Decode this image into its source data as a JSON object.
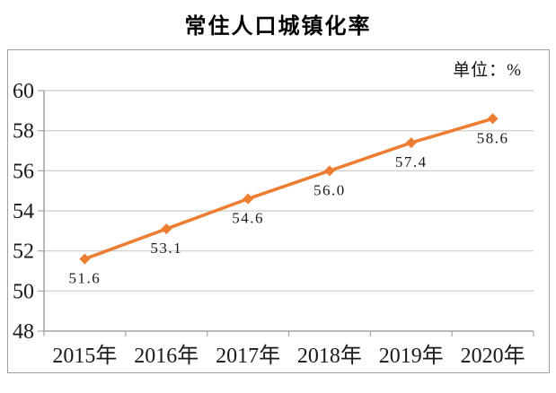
{
  "title": "常住人口城镇化率",
  "unit_label": "单位：%",
  "chart_data": {
    "type": "line",
    "title": "常住人口城镇化率",
    "categories": [
      "2015年",
      "2016年",
      "2017年",
      "2018年",
      "2019年",
      "2020年"
    ],
    "series": [
      {
        "name": "常住人口城镇化率",
        "values": [
          51.6,
          53.1,
          54.6,
          56.0,
          57.4,
          58.6
        ],
        "data_labels": [
          "51.6",
          "53.1",
          "54.6",
          "56.0",
          "57.4",
          "58.6"
        ]
      }
    ],
    "xlabel": "",
    "ylabel": "单位：%",
    "ylim": [
      48,
      60
    ],
    "ytick_step": 2,
    "grid": true,
    "legend_position": "none",
    "marker": "diamond",
    "colors": {
      "line": "#ED7D31",
      "marker": "#ED7D31",
      "gridline": "#c9c9c9",
      "axis": "#a6a6a6",
      "text": "#1a1a1a",
      "border": "#9e9e9e"
    }
  }
}
